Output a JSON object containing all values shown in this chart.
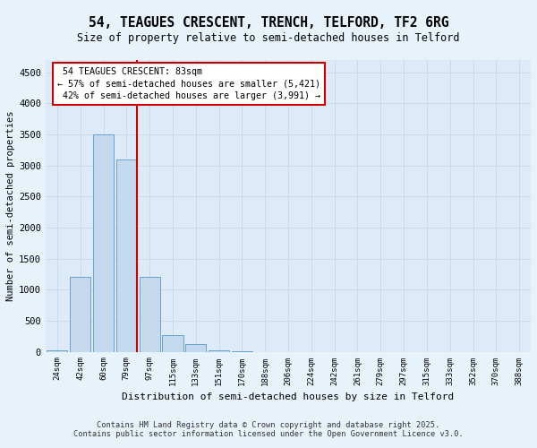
{
  "title_line1": "54, TEAGUES CRESCENT, TRENCH, TELFORD, TF2 6RG",
  "title_line2": "Size of property relative to semi-detached houses in Telford",
  "xlabel": "Distribution of semi-detached houses by size in Telford",
  "ylabel": "Number of semi-detached properties",
  "categories": [
    "24sqm",
    "42sqm",
    "60sqm",
    "79sqm",
    "97sqm",
    "115sqm",
    "133sqm",
    "151sqm",
    "170sqm",
    "188sqm",
    "206sqm",
    "224sqm",
    "242sqm",
    "261sqm",
    "279sqm",
    "297sqm",
    "315sqm",
    "333sqm",
    "352sqm",
    "370sqm",
    "388sqm"
  ],
  "values": [
    30,
    1200,
    3500,
    3100,
    1200,
    270,
    130,
    30,
    10,
    0,
    0,
    0,
    0,
    0,
    0,
    0,
    0,
    0,
    0,
    0,
    0
  ],
  "bar_color": "#c5d9ee",
  "bar_edgecolor": "#6aa3cc",
  "vline_index": 3,
  "property_label": "54 TEAGUES CRESCENT: 83sqm",
  "pct_smaller": 57,
  "count_smaller": 5421,
  "pct_larger": 42,
  "count_larger": 3991,
  "ylim": [
    0,
    4700
  ],
  "yticks": [
    0,
    500,
    1000,
    1500,
    2000,
    2500,
    3000,
    3500,
    4000,
    4500
  ],
  "vline_color": "#cc0000",
  "annotation_box_edgecolor": "#cc0000",
  "footer_line1": "Contains HM Land Registry data © Crown copyright and database right 2025.",
  "footer_line2": "Contains public sector information licensed under the Open Government Licence v3.0.",
  "bg_color": "#e8f2fb",
  "plot_bg_color": "#ddeaf7"
}
